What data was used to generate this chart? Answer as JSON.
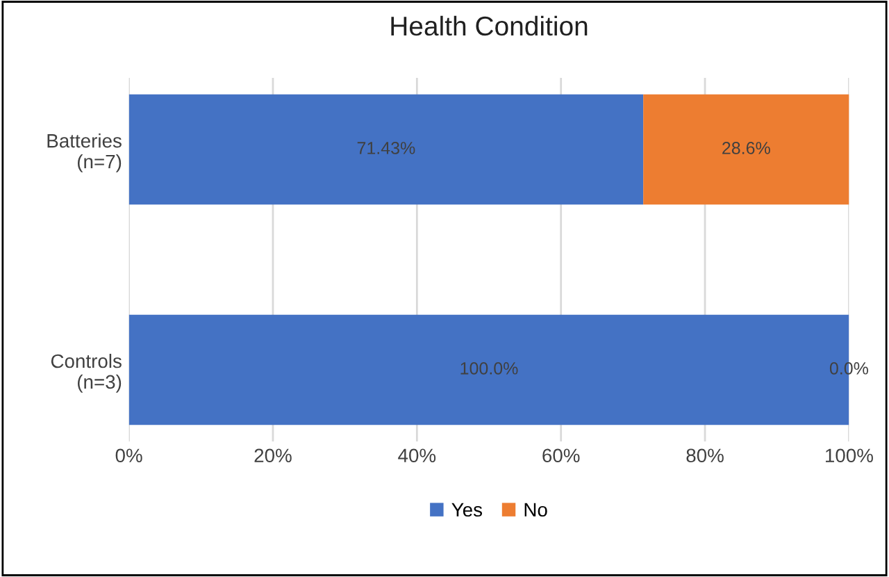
{
  "chart_data": {
    "type": "bar",
    "orientation": "horizontal",
    "stacked": true,
    "title": "Health Condition",
    "categories": [
      "Batteries\n(n=7)",
      "Controls\n(n=3)"
    ],
    "series": [
      {
        "name": "Yes",
        "color": "#4472c4",
        "values": [
          71.43,
          100.0
        ],
        "value_labels": [
          "71.43%",
          "100.0%"
        ]
      },
      {
        "name": "No",
        "color": "#ed7d31",
        "values": [
          28.6,
          0.0
        ],
        "value_labels": [
          "28.6%",
          "0.0%"
        ]
      }
    ],
    "xlim": [
      0,
      100
    ],
    "xticks": [
      {
        "value": 0,
        "label": "0%"
      },
      {
        "value": 20,
        "label": "20%"
      },
      {
        "value": 40,
        "label": "40%"
      },
      {
        "value": 60,
        "label": "60%"
      },
      {
        "value": 80,
        "label": "80%"
      },
      {
        "value": 100,
        "label": "100%"
      }
    ],
    "grid": "x",
    "legend": "bottom"
  }
}
